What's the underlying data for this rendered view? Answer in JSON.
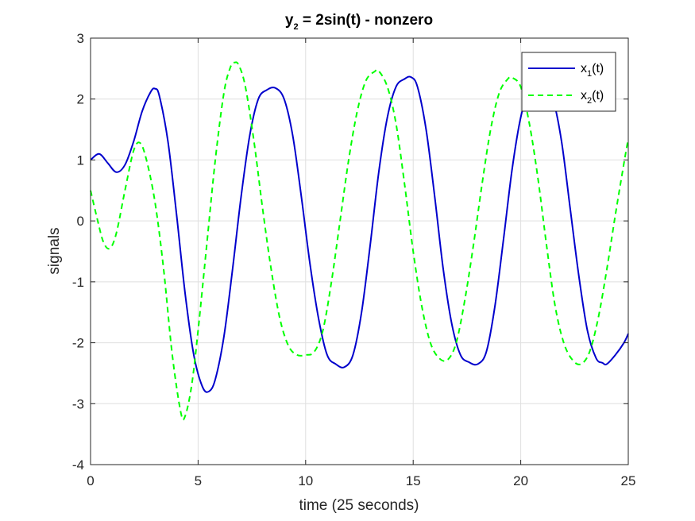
{
  "chart_data": {
    "type": "line",
    "title": {
      "main": "y",
      "sub": "2",
      "rest": " = 2sin(t) - nonzero"
    },
    "xlabel": "time (25 seconds)",
    "ylabel": "signals",
    "xlim": [
      0,
      25
    ],
    "ylim": [
      -4,
      3
    ],
    "xticks": [
      0,
      5,
      10,
      15,
      20,
      25
    ],
    "yticks": [
      -4,
      -3,
      -2,
      -1,
      0,
      1,
      2,
      3
    ],
    "grid": true,
    "legend_position": "top-right",
    "series": [
      {
        "name": "x(t)",
        "legend": {
          "base": "x",
          "sub": "1",
          "rest": "(t)"
        },
        "color": "#0000cc",
        "dash": "solid",
        "points": [
          [
            0,
            1.0
          ],
          [
            0.4,
            1.1
          ],
          [
            0.8,
            0.95
          ],
          [
            1.2,
            0.8
          ],
          [
            1.6,
            0.92
          ],
          [
            2.0,
            1.3
          ],
          [
            2.4,
            1.8
          ],
          [
            2.8,
            2.12
          ],
          [
            3.0,
            2.17
          ],
          [
            3.2,
            2.05
          ],
          [
            3.6,
            1.3
          ],
          [
            4.0,
            0.1
          ],
          [
            4.4,
            -1.2
          ],
          [
            4.8,
            -2.2
          ],
          [
            5.2,
            -2.72
          ],
          [
            5.5,
            -2.8
          ],
          [
            5.8,
            -2.6
          ],
          [
            6.2,
            -1.9
          ],
          [
            6.6,
            -0.8
          ],
          [
            7.0,
            0.4
          ],
          [
            7.4,
            1.4
          ],
          [
            7.8,
            2.0
          ],
          [
            8.2,
            2.15
          ],
          [
            8.6,
            2.18
          ],
          [
            9.0,
            2.0
          ],
          [
            9.4,
            1.4
          ],
          [
            9.8,
            0.4
          ],
          [
            10.2,
            -0.7
          ],
          [
            10.6,
            -1.6
          ],
          [
            11.0,
            -2.2
          ],
          [
            11.4,
            -2.35
          ],
          [
            11.8,
            -2.4
          ],
          [
            12.2,
            -2.2
          ],
          [
            12.6,
            -1.5
          ],
          [
            13.0,
            -0.4
          ],
          [
            13.4,
            0.8
          ],
          [
            13.8,
            1.7
          ],
          [
            14.2,
            2.2
          ],
          [
            14.6,
            2.33
          ],
          [
            14.9,
            2.36
          ],
          [
            15.2,
            2.2
          ],
          [
            15.6,
            1.5
          ],
          [
            16.0,
            0.4
          ],
          [
            16.4,
            -0.8
          ],
          [
            16.8,
            -1.7
          ],
          [
            17.2,
            -2.2
          ],
          [
            17.6,
            -2.32
          ],
          [
            18.0,
            -2.35
          ],
          [
            18.4,
            -2.15
          ],
          [
            18.8,
            -1.4
          ],
          [
            19.2,
            -0.3
          ],
          [
            19.6,
            0.85
          ],
          [
            20.0,
            1.7
          ],
          [
            20.4,
            2.15
          ],
          [
            20.8,
            2.3
          ],
          [
            21.1,
            2.28
          ],
          [
            21.5,
            2.0
          ],
          [
            21.9,
            1.3
          ],
          [
            22.3,
            0.2
          ],
          [
            22.7,
            -0.9
          ],
          [
            23.1,
            -1.8
          ],
          [
            23.5,
            -2.25
          ],
          [
            23.8,
            -2.33
          ],
          [
            24.0,
            -2.35
          ],
          [
            24.4,
            -2.2
          ],
          [
            24.8,
            -2.0
          ],
          [
            25.0,
            -1.85
          ]
        ]
      },
      {
        "name": "x(t)",
        "legend": {
          "base": "x",
          "sub": "2",
          "rest": "(t)"
        },
        "color": "#00ff00",
        "dash": "dashed",
        "points": [
          [
            0,
            0.5
          ],
          [
            0.3,
            0.05
          ],
          [
            0.6,
            -0.35
          ],
          [
            0.9,
            -0.45
          ],
          [
            1.2,
            -0.2
          ],
          [
            1.6,
            0.5
          ],
          [
            2.0,
            1.15
          ],
          [
            2.3,
            1.28
          ],
          [
            2.6,
            1.0
          ],
          [
            3.0,
            0.3
          ],
          [
            3.4,
            -0.8
          ],
          [
            3.8,
            -2.2
          ],
          [
            4.2,
            -3.15
          ],
          [
            4.4,
            -3.2
          ],
          [
            4.7,
            -2.7
          ],
          [
            5.0,
            -1.8
          ],
          [
            5.4,
            -0.4
          ],
          [
            5.8,
            1.0
          ],
          [
            6.2,
            2.1
          ],
          [
            6.5,
            2.52
          ],
          [
            6.7,
            2.6
          ],
          [
            6.9,
            2.55
          ],
          [
            7.2,
            2.2
          ],
          [
            7.6,
            1.3
          ],
          [
            8.0,
            0.2
          ],
          [
            8.4,
            -0.8
          ],
          [
            8.8,
            -1.6
          ],
          [
            9.2,
            -2.05
          ],
          [
            9.6,
            -2.2
          ],
          [
            10.0,
            -2.2
          ],
          [
            10.4,
            -2.15
          ],
          [
            10.8,
            -1.8
          ],
          [
            11.2,
            -1.0
          ],
          [
            11.6,
            0.0
          ],
          [
            12.0,
            1.0
          ],
          [
            12.4,
            1.8
          ],
          [
            12.8,
            2.3
          ],
          [
            13.2,
            2.45
          ],
          [
            13.4,
            2.46
          ],
          [
            13.8,
            2.2
          ],
          [
            14.2,
            1.6
          ],
          [
            14.6,
            0.6
          ],
          [
            15.0,
            -0.5
          ],
          [
            15.4,
            -1.4
          ],
          [
            15.8,
            -2.0
          ],
          [
            16.2,
            -2.25
          ],
          [
            16.6,
            -2.28
          ],
          [
            17.0,
            -2.0
          ],
          [
            17.4,
            -1.3
          ],
          [
            17.8,
            -0.4
          ],
          [
            18.2,
            0.6
          ],
          [
            18.6,
            1.5
          ],
          [
            19.0,
            2.1
          ],
          [
            19.4,
            2.33
          ],
          [
            19.6,
            2.35
          ],
          [
            20.0,
            2.2
          ],
          [
            20.4,
            1.6
          ],
          [
            20.8,
            0.7
          ],
          [
            21.2,
            -0.4
          ],
          [
            21.6,
            -1.4
          ],
          [
            22.0,
            -2.0
          ],
          [
            22.4,
            -2.28
          ],
          [
            22.8,
            -2.35
          ],
          [
            23.2,
            -2.15
          ],
          [
            23.6,
            -1.6
          ],
          [
            24.0,
            -0.8
          ],
          [
            24.4,
            0.1
          ],
          [
            24.8,
            0.95
          ],
          [
            25.0,
            1.35
          ]
        ]
      }
    ]
  }
}
